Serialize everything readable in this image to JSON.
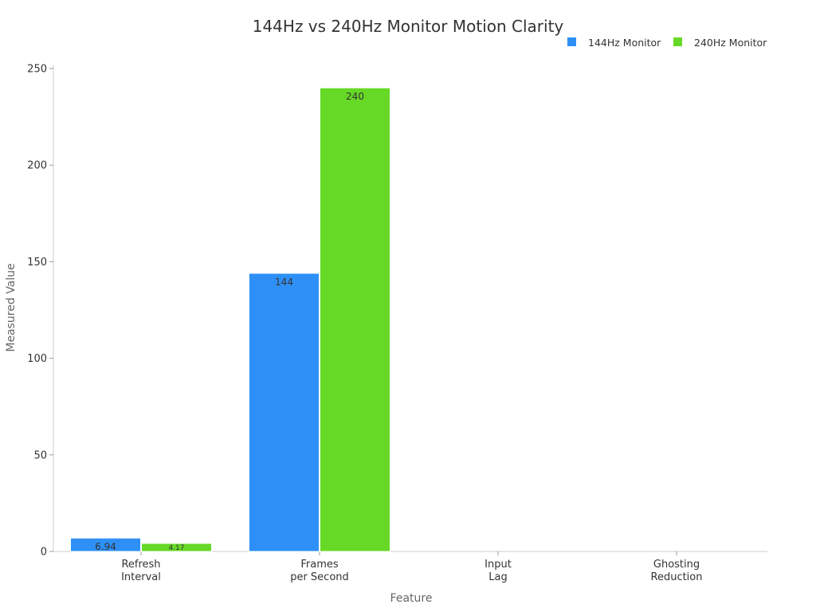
{
  "chart_data": {
    "type": "bar",
    "title": "144Hz vs 240Hz Monitor Motion Clarity",
    "xlabel": "Feature",
    "ylabel": "Measured Value",
    "categories": [
      "Refresh\nInterval",
      "Frames\nper Second",
      "Input\nLag",
      "Ghosting\nReduction"
    ],
    "series": [
      {
        "name": "144Hz Monitor",
        "color": "#2e90f6",
        "values": [
          6.94,
          144,
          0,
          0
        ],
        "labels": [
          "6.94",
          "144",
          "",
          ""
        ]
      },
      {
        "name": "240Hz Monitor",
        "color": "#66d926",
        "values": [
          4.17,
          240,
          0,
          0
        ],
        "labels": [
          "4.17",
          "240",
          "",
          ""
        ]
      }
    ],
    "ylim": [
      0,
      250
    ],
    "yticks": [
      0,
      50,
      100,
      150,
      200,
      250
    ],
    "grid": false,
    "legend_position": "top-right"
  }
}
